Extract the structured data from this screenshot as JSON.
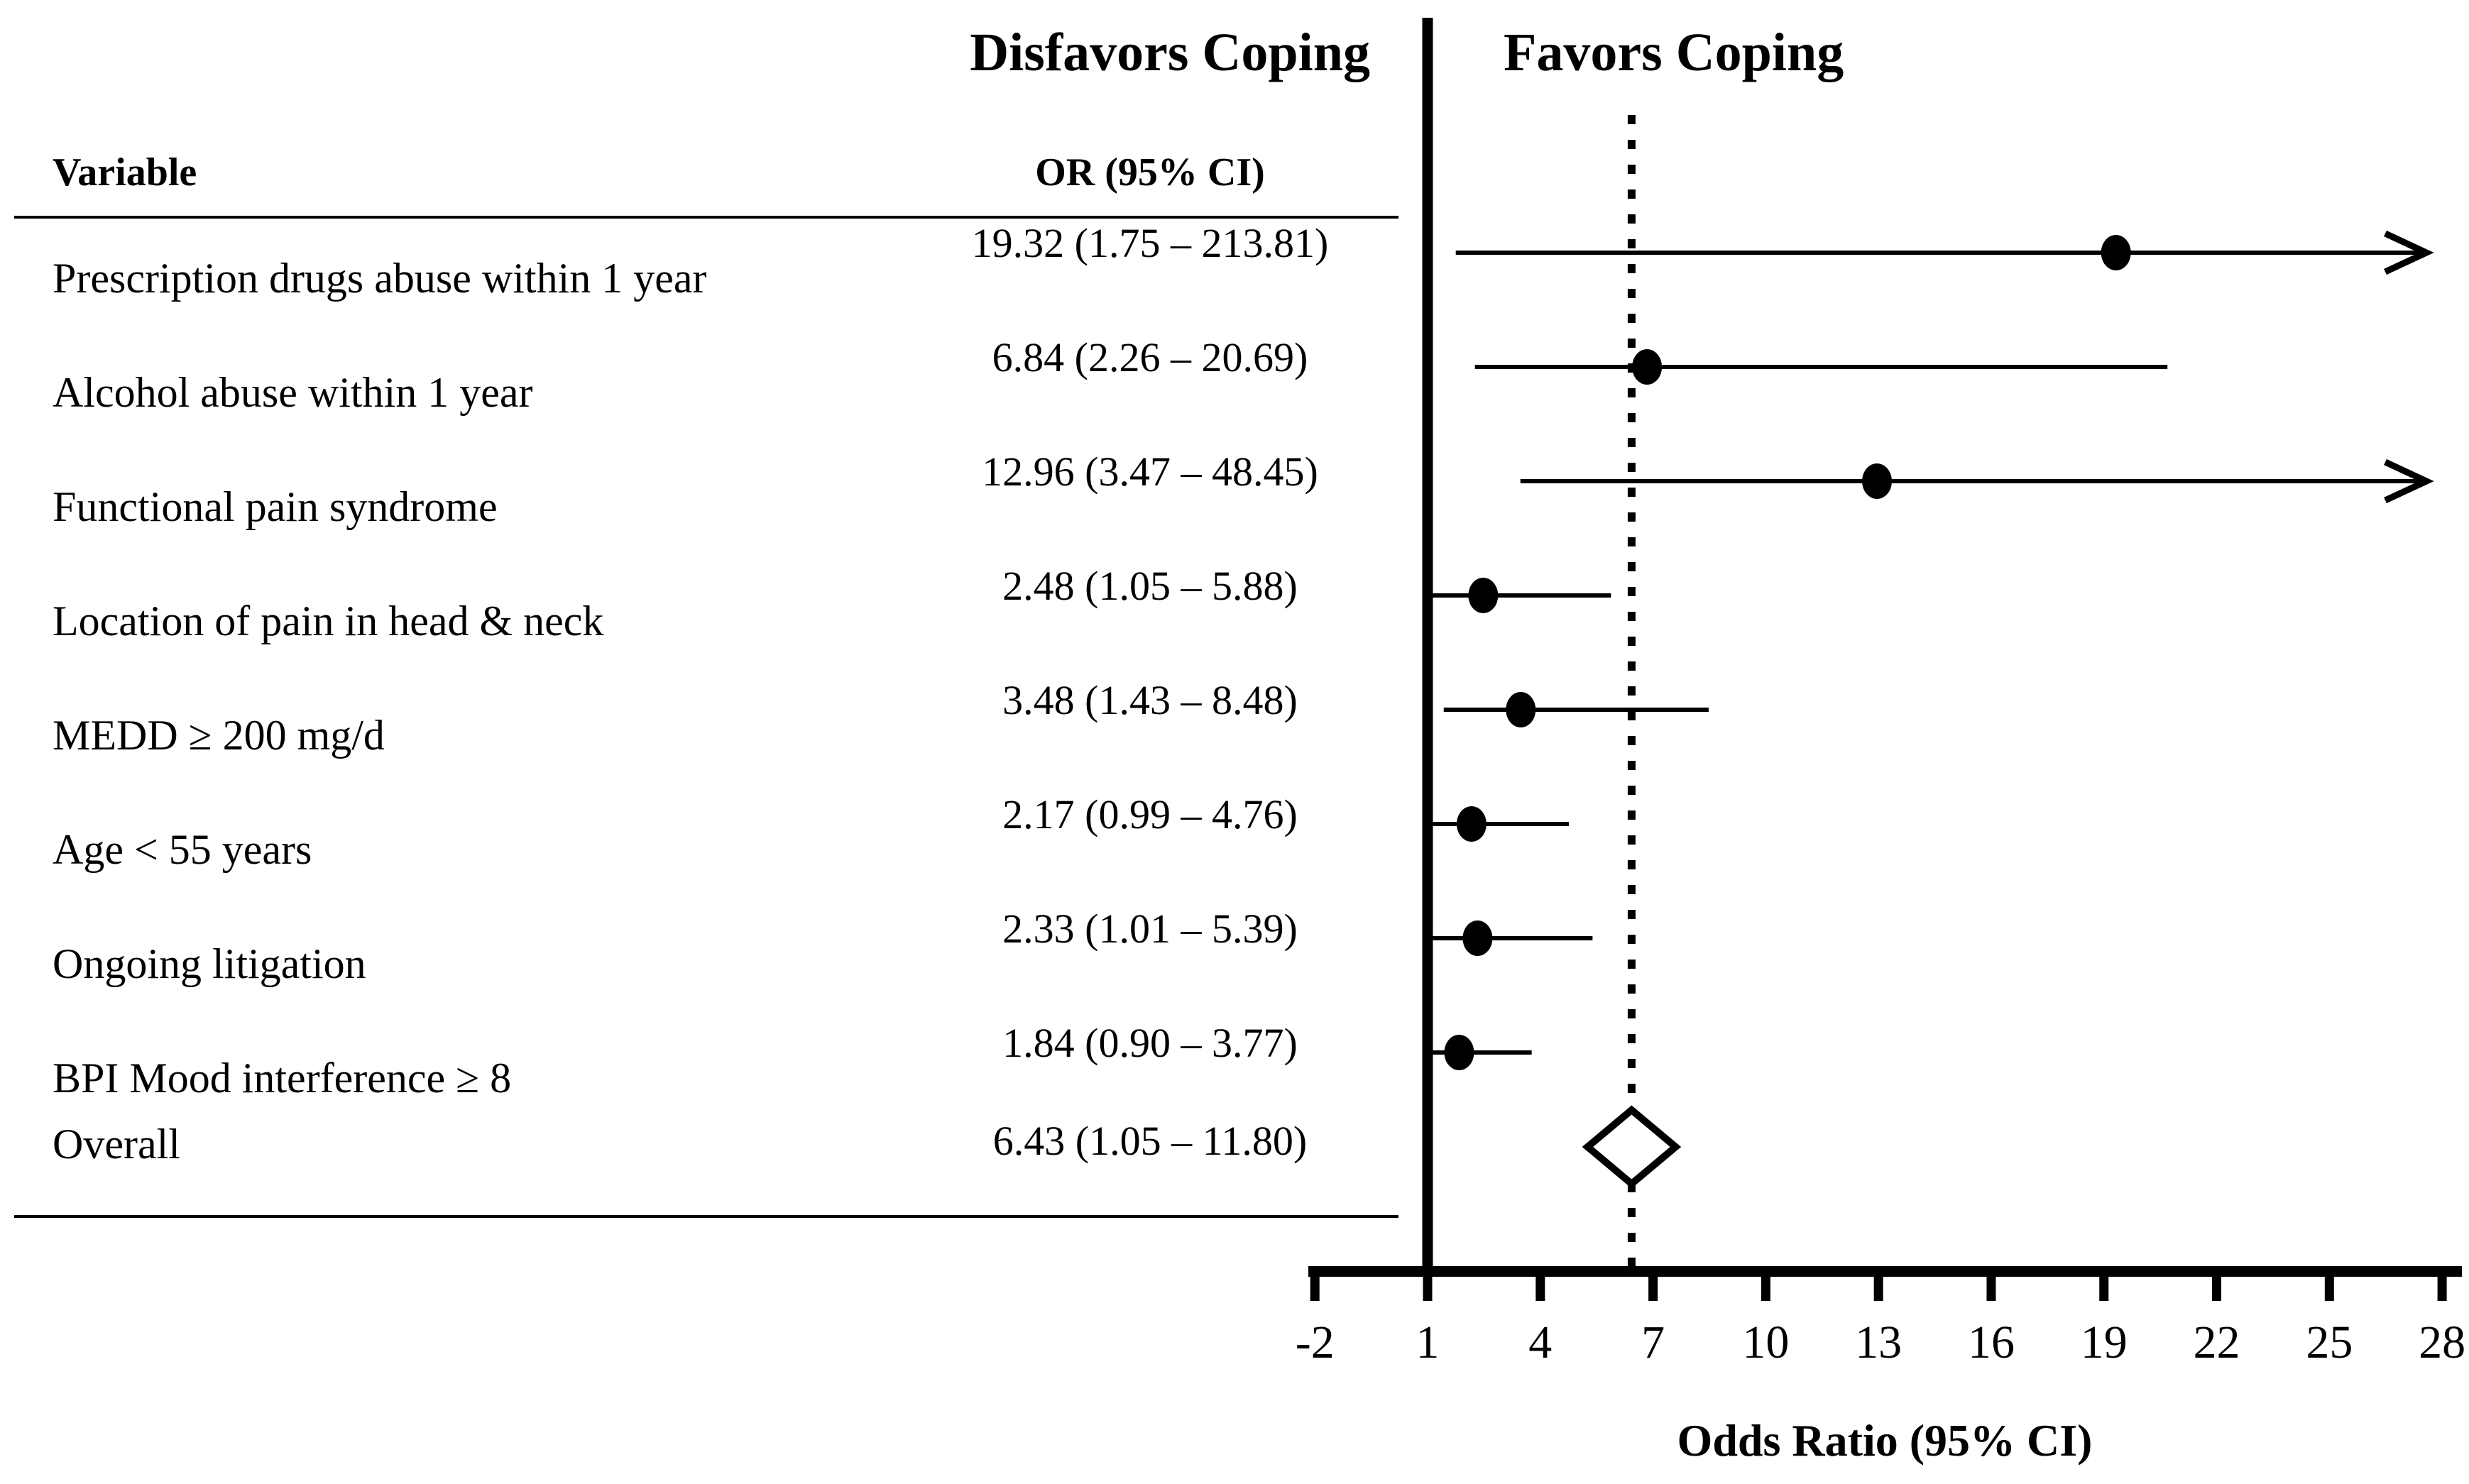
{
  "figure": {
    "region_labels": {
      "disfavors": "Disfavors Coping",
      "favors": "Favors Coping"
    },
    "table": {
      "variable_header": "Variable",
      "or_header": "OR (95% CI)"
    },
    "axis_title": "Odds Ratio (95% CI)"
  },
  "chart_data": {
    "type": "forest",
    "title": "",
    "xlabel": "Odds Ratio (95% CI)",
    "xlim": [
      -2,
      28
    ],
    "x_ticks": [
      -2,
      1,
      4,
      7,
      10,
      13,
      16,
      19,
      22,
      25,
      28
    ],
    "reference_line_x": 1,
    "overall_dotted_line_x": 6.43,
    "left_region_label": "Disfavors Coping",
    "right_region_label": "Favors Coping",
    "columns": [
      "Variable",
      "OR (95% CI)"
    ],
    "grid": "off",
    "rows": [
      {
        "label": "Prescription drugs abuse within 1 year",
        "or_text": "19.32 (1.75 – 213.81)",
        "or": 19.32,
        "ci_low": 1.75,
        "ci_high": 213.81,
        "clipped_right": true
      },
      {
        "label": "Alcohol abuse within 1 year",
        "or_text": "6.84 (2.26 – 20.69)",
        "or": 6.84,
        "ci_low": 2.26,
        "ci_high": 20.69,
        "clipped_right": false
      },
      {
        "label": "Functional pain syndrome",
        "or_text": "12.96 (3.47 – 48.45)",
        "or": 12.96,
        "ci_low": 3.47,
        "ci_high": 48.45,
        "clipped_right": true
      },
      {
        "label": "Location of pain in head & neck",
        "or_text": "2.48 (1.05 – 5.88)",
        "or": 2.48,
        "ci_low": 1.05,
        "ci_high": 5.88,
        "clipped_right": false
      },
      {
        "label": "MEDD ≥ 200 mg/d",
        "or_text": "3.48 (1.43 – 8.48)",
        "or": 3.48,
        "ci_low": 1.43,
        "ci_high": 8.48,
        "clipped_right": false
      },
      {
        "label": "Age < 55 years",
        "or_text": "2.17 (0.99 – 4.76)",
        "or": 2.17,
        "ci_low": 0.99,
        "ci_high": 4.76,
        "clipped_right": false
      },
      {
        "label": "Ongoing litigation",
        "or_text": "2.33 (1.01 – 5.39)",
        "or": 2.33,
        "ci_low": 1.01,
        "ci_high": 5.39,
        "clipped_right": false
      },
      {
        "label": "BPI Mood interference ≥ 8",
        "or_text": "1.84 (0.90 – 3.77)",
        "or": 1.84,
        "ci_low": 0.9,
        "ci_high": 3.77,
        "clipped_right": false
      },
      {
        "label": "Overall",
        "or_text": "6.43 (1.05 – 11.80)",
        "or": 6.43,
        "ci_low": 1.05,
        "ci_high": 11.8,
        "summary": true
      }
    ]
  }
}
